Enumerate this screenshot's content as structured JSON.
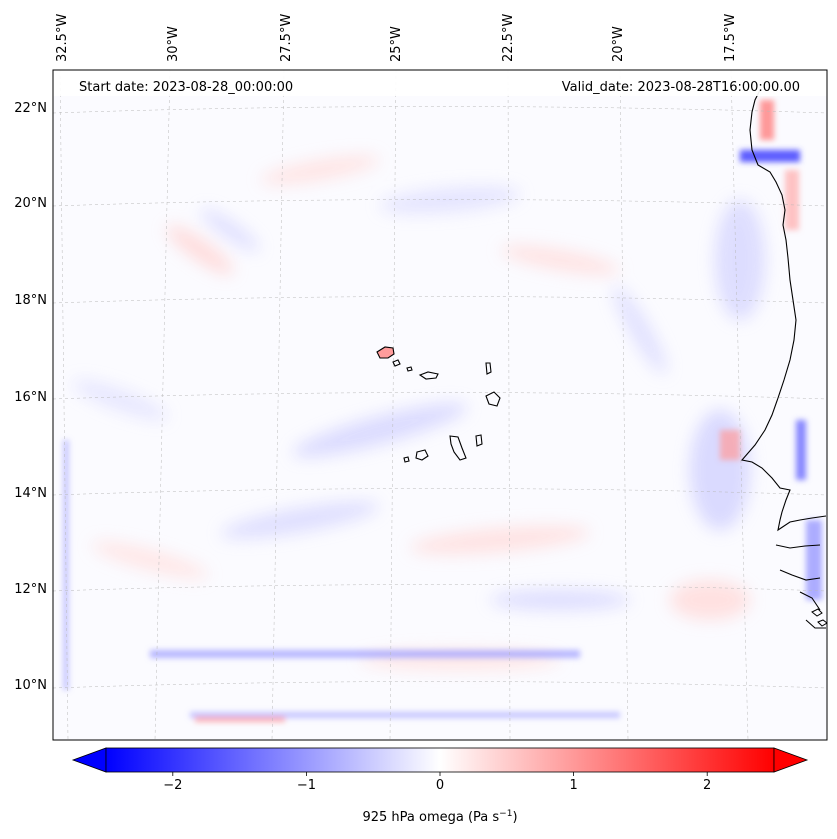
{
  "header": {
    "start_date": "Start date: 2023-08-28_00:00:00",
    "valid_date": "Valid_date: 2023-08-28T16:00:00.00"
  },
  "longitude_labels": [
    "32.5°W",
    "30°W",
    "27.5°W",
    "25°W",
    "22.5°W",
    "20°W",
    "17.5°W"
  ],
  "latitude_labels": [
    "22°N",
    "20°N",
    "18°N",
    "16°N",
    "14°N",
    "12°N",
    "10°N"
  ],
  "colorbar": {
    "label": "925 hPa omega (Pa s",
    "label_exponent": "−1",
    "label_close": ")",
    "ticks": [
      {
        "value": -2,
        "text": "−2"
      },
      {
        "value": -1,
        "text": "−1"
      },
      {
        "value": 0,
        "text": "0"
      },
      {
        "value": 1,
        "text": "1"
      },
      {
        "value": 2,
        "text": "2"
      }
    ],
    "range": [
      -2.5,
      2.5
    ],
    "colors": {
      "min": "#0000ff",
      "mid": "#ffffff",
      "max": "#ff0000"
    }
  },
  "map": {
    "field": "925 hPa omega",
    "colormap": "bwr",
    "coastline_color": "#000000",
    "gridline_color": "#b0b0b0"
  }
}
